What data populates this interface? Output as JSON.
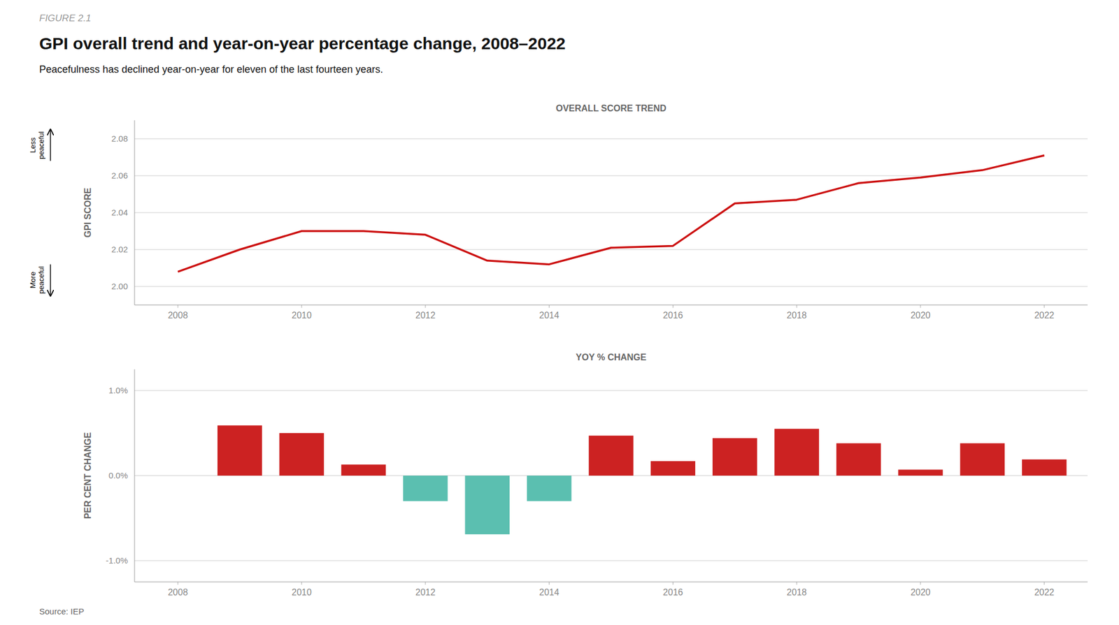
{
  "figure_label": "FIGURE 2.1",
  "title": "GPI overall trend and year-on-year percentage change, 2008–2022",
  "subtitle": "Peacefulness has declined year-on-year for eleven of the last fourteen years.",
  "source": "Source: IEP",
  "chart_data": [
    {
      "type": "line",
      "title": "OVERALL SCORE TREND",
      "y_label": "GPI SCORE",
      "x": [
        2008,
        2009,
        2010,
        2011,
        2012,
        2013,
        2014,
        2015,
        2016,
        2017,
        2018,
        2019,
        2020,
        2021,
        2022
      ],
      "values": [
        2.008,
        2.02,
        2.03,
        2.03,
        2.028,
        2.014,
        2.012,
        2.021,
        2.022,
        2.045,
        2.047,
        2.056,
        2.059,
        2.063,
        2.071
      ],
      "color": "#cc1111",
      "xlim": [
        2007.3,
        2022.7
      ],
      "xticks": [
        2008,
        2010,
        2012,
        2014,
        2016,
        2018,
        2020,
        2022
      ],
      "ylim": [
        1.99,
        2.09
      ],
      "yticks": [
        {
          "value": 2.0,
          "label": "2.00"
        },
        2.02,
        2.04,
        2.06,
        2.08
      ],
      "grid": true,
      "annotations": [
        "Less\npeaceful",
        "More\npeaceful"
      ]
    },
    {
      "type": "bar",
      "title": "YOY % CHANGE",
      "y_label": "PER CENT CHANGE",
      "x": [
        2009,
        2010,
        2011,
        2012,
        2013,
        2014,
        2015,
        2016,
        2017,
        2018,
        2019,
        2020,
        2021,
        2022
      ],
      "values": [
        0.59,
        0.5,
        0.13,
        -0.3,
        -0.69,
        -0.3,
        0.47,
        0.17,
        0.44,
        0.55,
        0.38,
        0.07,
        0.38,
        0.19
      ],
      "colors": [
        "#cc2222",
        "#cc2222",
        "#cc2222",
        "#5bbfb0",
        "#5bbfb0",
        "#5bbfb0",
        "#cc2222",
        "#cc2222",
        "#cc2222",
        "#cc2222",
        "#cc2222",
        "#cc2222",
        "#cc2222",
        "#cc2222"
      ],
      "xlim": [
        2007.3,
        2022.7
      ],
      "xticks": [
        2008,
        2010,
        2012,
        2014,
        2016,
        2018,
        2020,
        2022
      ],
      "ylim": [
        -1.25,
        1.25
      ],
      "yticks": [
        {
          "value": -1.0,
          "label": "-1.0%"
        },
        {
          "value": 0.0,
          "label": "0.0%"
        },
        {
          "value": 1.0,
          "label": "1.0%"
        }
      ],
      "grid": true
    }
  ]
}
